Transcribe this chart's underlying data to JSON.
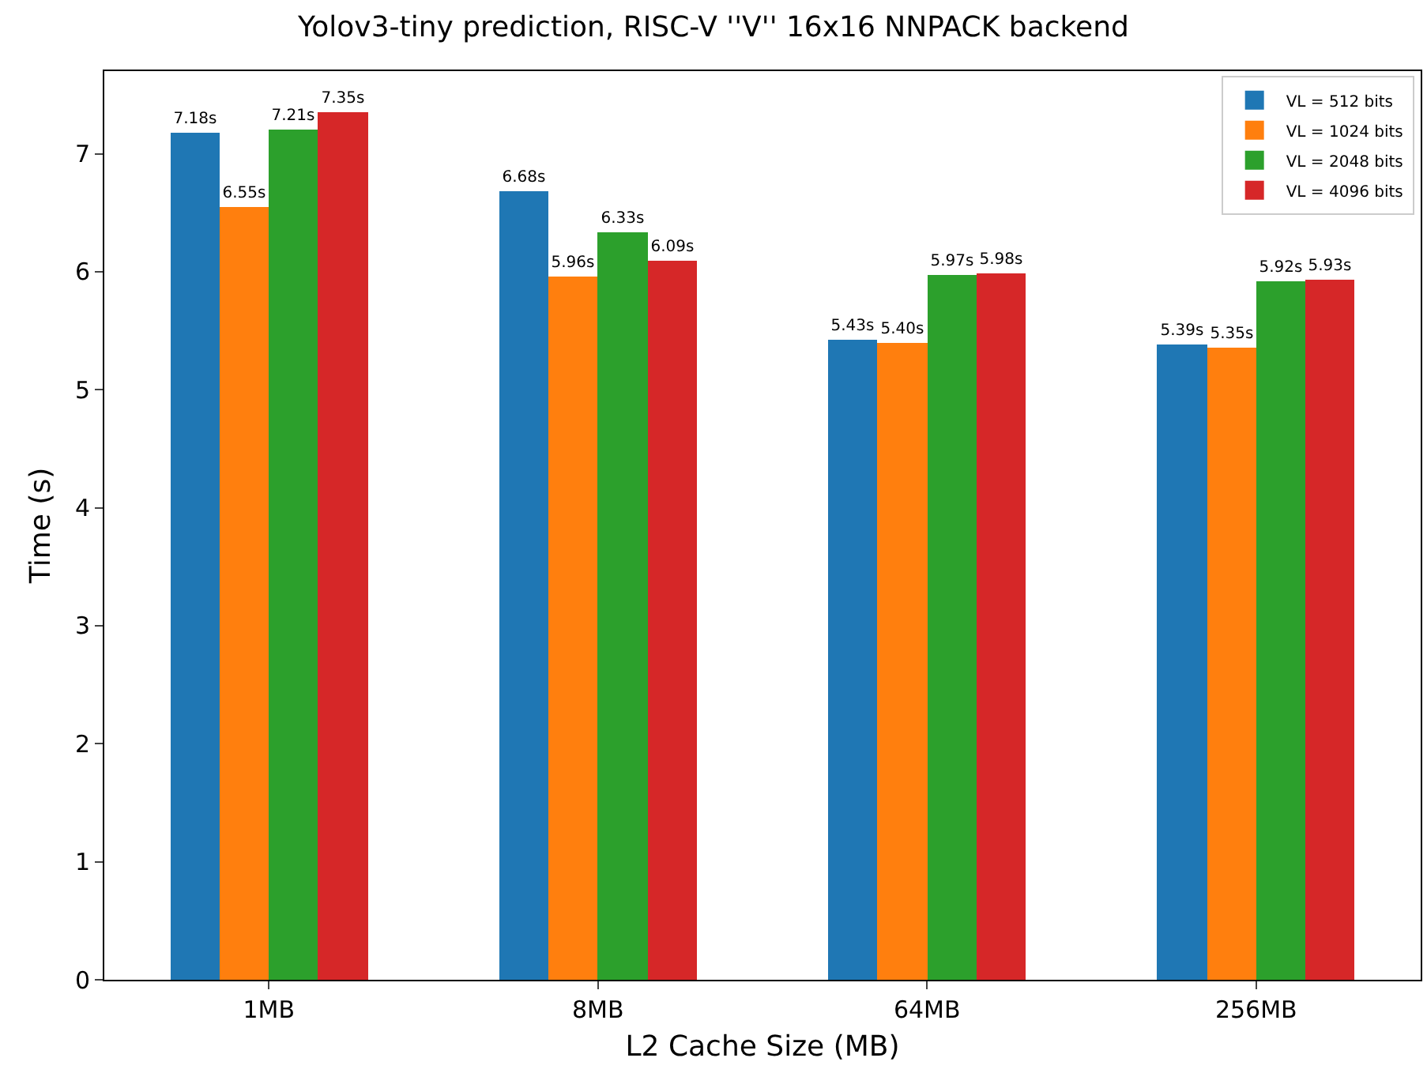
{
  "chart_data": {
    "type": "bar",
    "title": "Yolov3-tiny prediction, RISC-V ''V'' 16x16 NNPACK backend",
    "xlabel": "L2 Cache Size (MB)",
    "ylabel": "Time (s)",
    "categories": [
      "1MB",
      "8MB",
      "64MB",
      "256MB"
    ],
    "series": [
      {
        "name": "VL = 512 bits",
        "color": "#1f77b4",
        "values": [
          7.18,
          6.68,
          5.43,
          5.39
        ],
        "value_labels": [
          "7.18s",
          "6.68s",
          "5.43s",
          "5.39s"
        ]
      },
      {
        "name": "VL = 1024 bits",
        "color": "#ff7f0e",
        "values": [
          6.55,
          5.96,
          5.4,
          5.35
        ],
        "value_labels": [
          "6.55s",
          "5.96s",
          "5.40s",
          "5.35s"
        ]
      },
      {
        "name": "VL = 2048 bits",
        "color": "#2ca02c",
        "values": [
          7.21,
          6.33,
          5.97,
          5.92
        ],
        "value_labels": [
          "7.21s",
          "6.33s",
          "5.97s",
          "5.92s"
        ]
      },
      {
        "name": "VL = 4096 bits",
        "color": "#d62728",
        "values": [
          7.35,
          6.09,
          5.98,
          5.93
        ],
        "value_labels": [
          "7.35s",
          "6.09s",
          "5.98s",
          "5.93s"
        ]
      }
    ],
    "ylim": [
      0,
      7.7
    ],
    "yticks": [
      0,
      1,
      2,
      3,
      4,
      5,
      6,
      7
    ],
    "grid": false,
    "legend": "top right"
  }
}
